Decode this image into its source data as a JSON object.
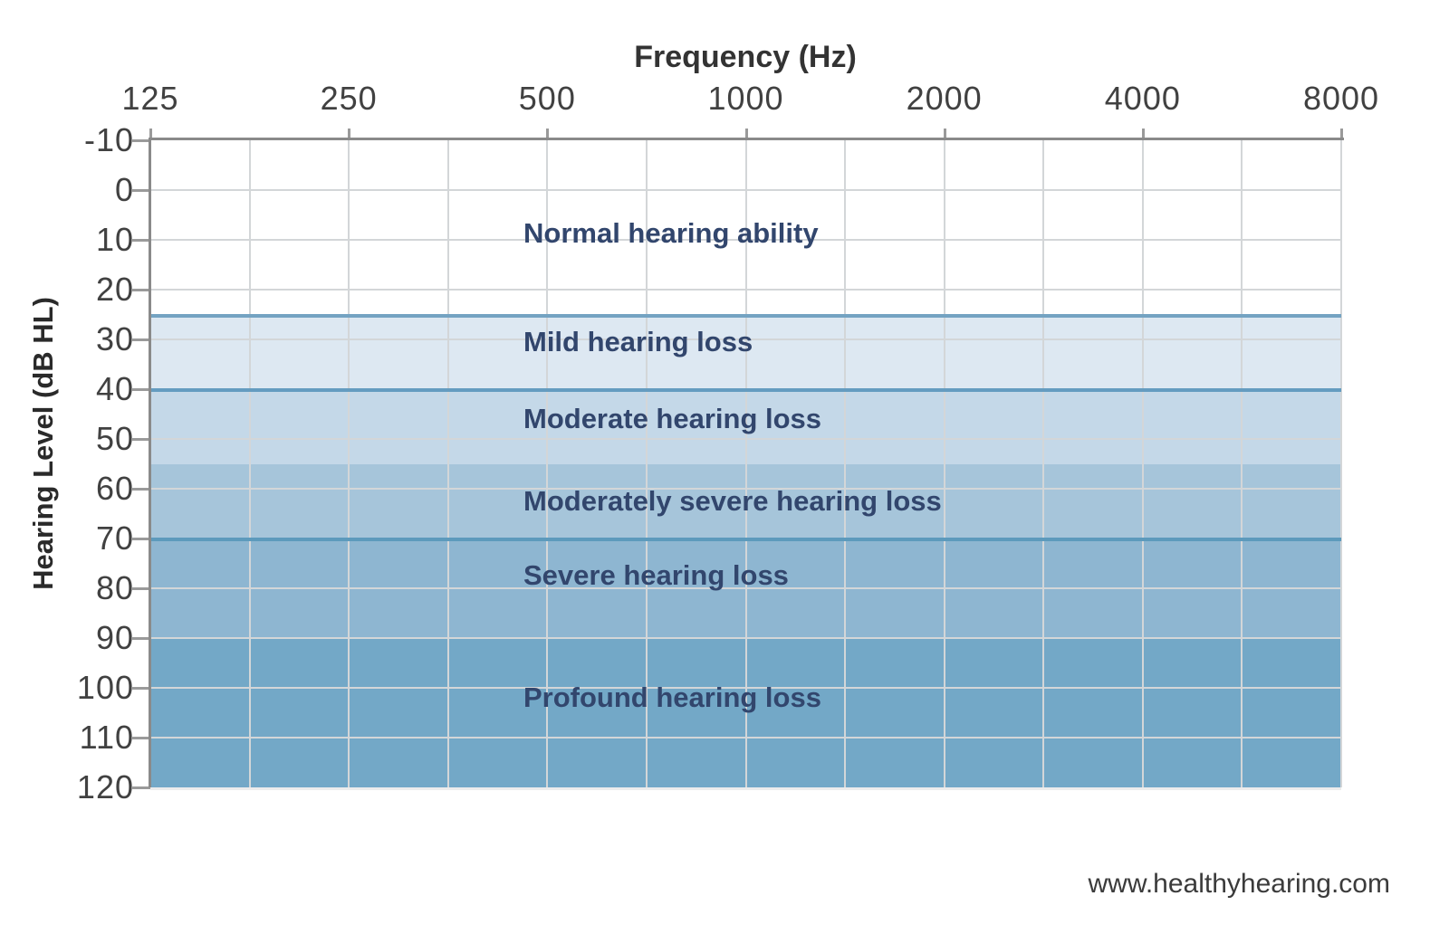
{
  "title": "Frequency (Hz)",
  "y_axis_title": "Hearing Level (dB HL)",
  "footer_url": "www.healthyhearing.com",
  "colors": {
    "axis_line": "#8a8a8a",
    "tick": "#9a9a9a",
    "grid": "#d3d6d8",
    "title_text": "#333333",
    "tick_label_text": "#414141",
    "band_label_text": "#32466d",
    "footer_text": "#3b3b3b"
  },
  "chart_data": {
    "type": "area",
    "subtype": "banded-audiogram",
    "title": "Frequency (Hz)",
    "xlabel": "Frequency (Hz)",
    "ylabel": "Hearing Level (dB HL)",
    "x_scale": "log-octave",
    "x_ticks": [
      125,
      250,
      500,
      1000,
      2000,
      4000,
      8000
    ],
    "x_tick_labels": [
      "125",
      "250",
      "500",
      "1000",
      "2000",
      "4000",
      "8000"
    ],
    "y_ticks": [
      -10,
      0,
      10,
      20,
      30,
      40,
      50,
      60,
      70,
      80,
      90,
      100,
      110,
      120
    ],
    "y_tick_labels": [
      "-10",
      "0",
      "10",
      "20",
      "30",
      "40",
      "50",
      "60",
      "70",
      "80",
      "90",
      "100",
      "110",
      "120"
    ],
    "ylim": [
      -10,
      120
    ],
    "y_axis_inverted": true,
    "grid": true,
    "minor_vgrid_per_octave": 2,
    "bands": [
      {
        "label": "Normal hearing ability",
        "from_db": -10,
        "to_db": 25,
        "color": "#ffffff",
        "border_color": null,
        "label_center_db": 8.7
      },
      {
        "label": "Mild hearing loss",
        "from_db": 25,
        "to_db": 40,
        "color": "#dde8f2",
        "border_color": "#74a3c2",
        "label_center_db": 30.5
      },
      {
        "label": "Moderate hearing loss",
        "from_db": 40,
        "to_db": 55,
        "color": "#c4d8e8",
        "border_color": "#649cc0",
        "label_center_db": 46
      },
      {
        "label": "Moderately severe hearing loss",
        "from_db": 55,
        "to_db": 70,
        "color": "#a6c5da",
        "border_color": null,
        "label_center_db": 62.5
      },
      {
        "label": "Severe hearing loss",
        "from_db": 70,
        "to_db": 90,
        "color": "#8eb6d1",
        "border_color": "#5d9abc",
        "label_center_db": 77.5
      },
      {
        "label": "Profound hearing loss",
        "from_db": 90,
        "to_db": 120,
        "color": "#73a8c7",
        "border_color": null,
        "label_center_db": 102
      }
    ],
    "legend": "none"
  }
}
